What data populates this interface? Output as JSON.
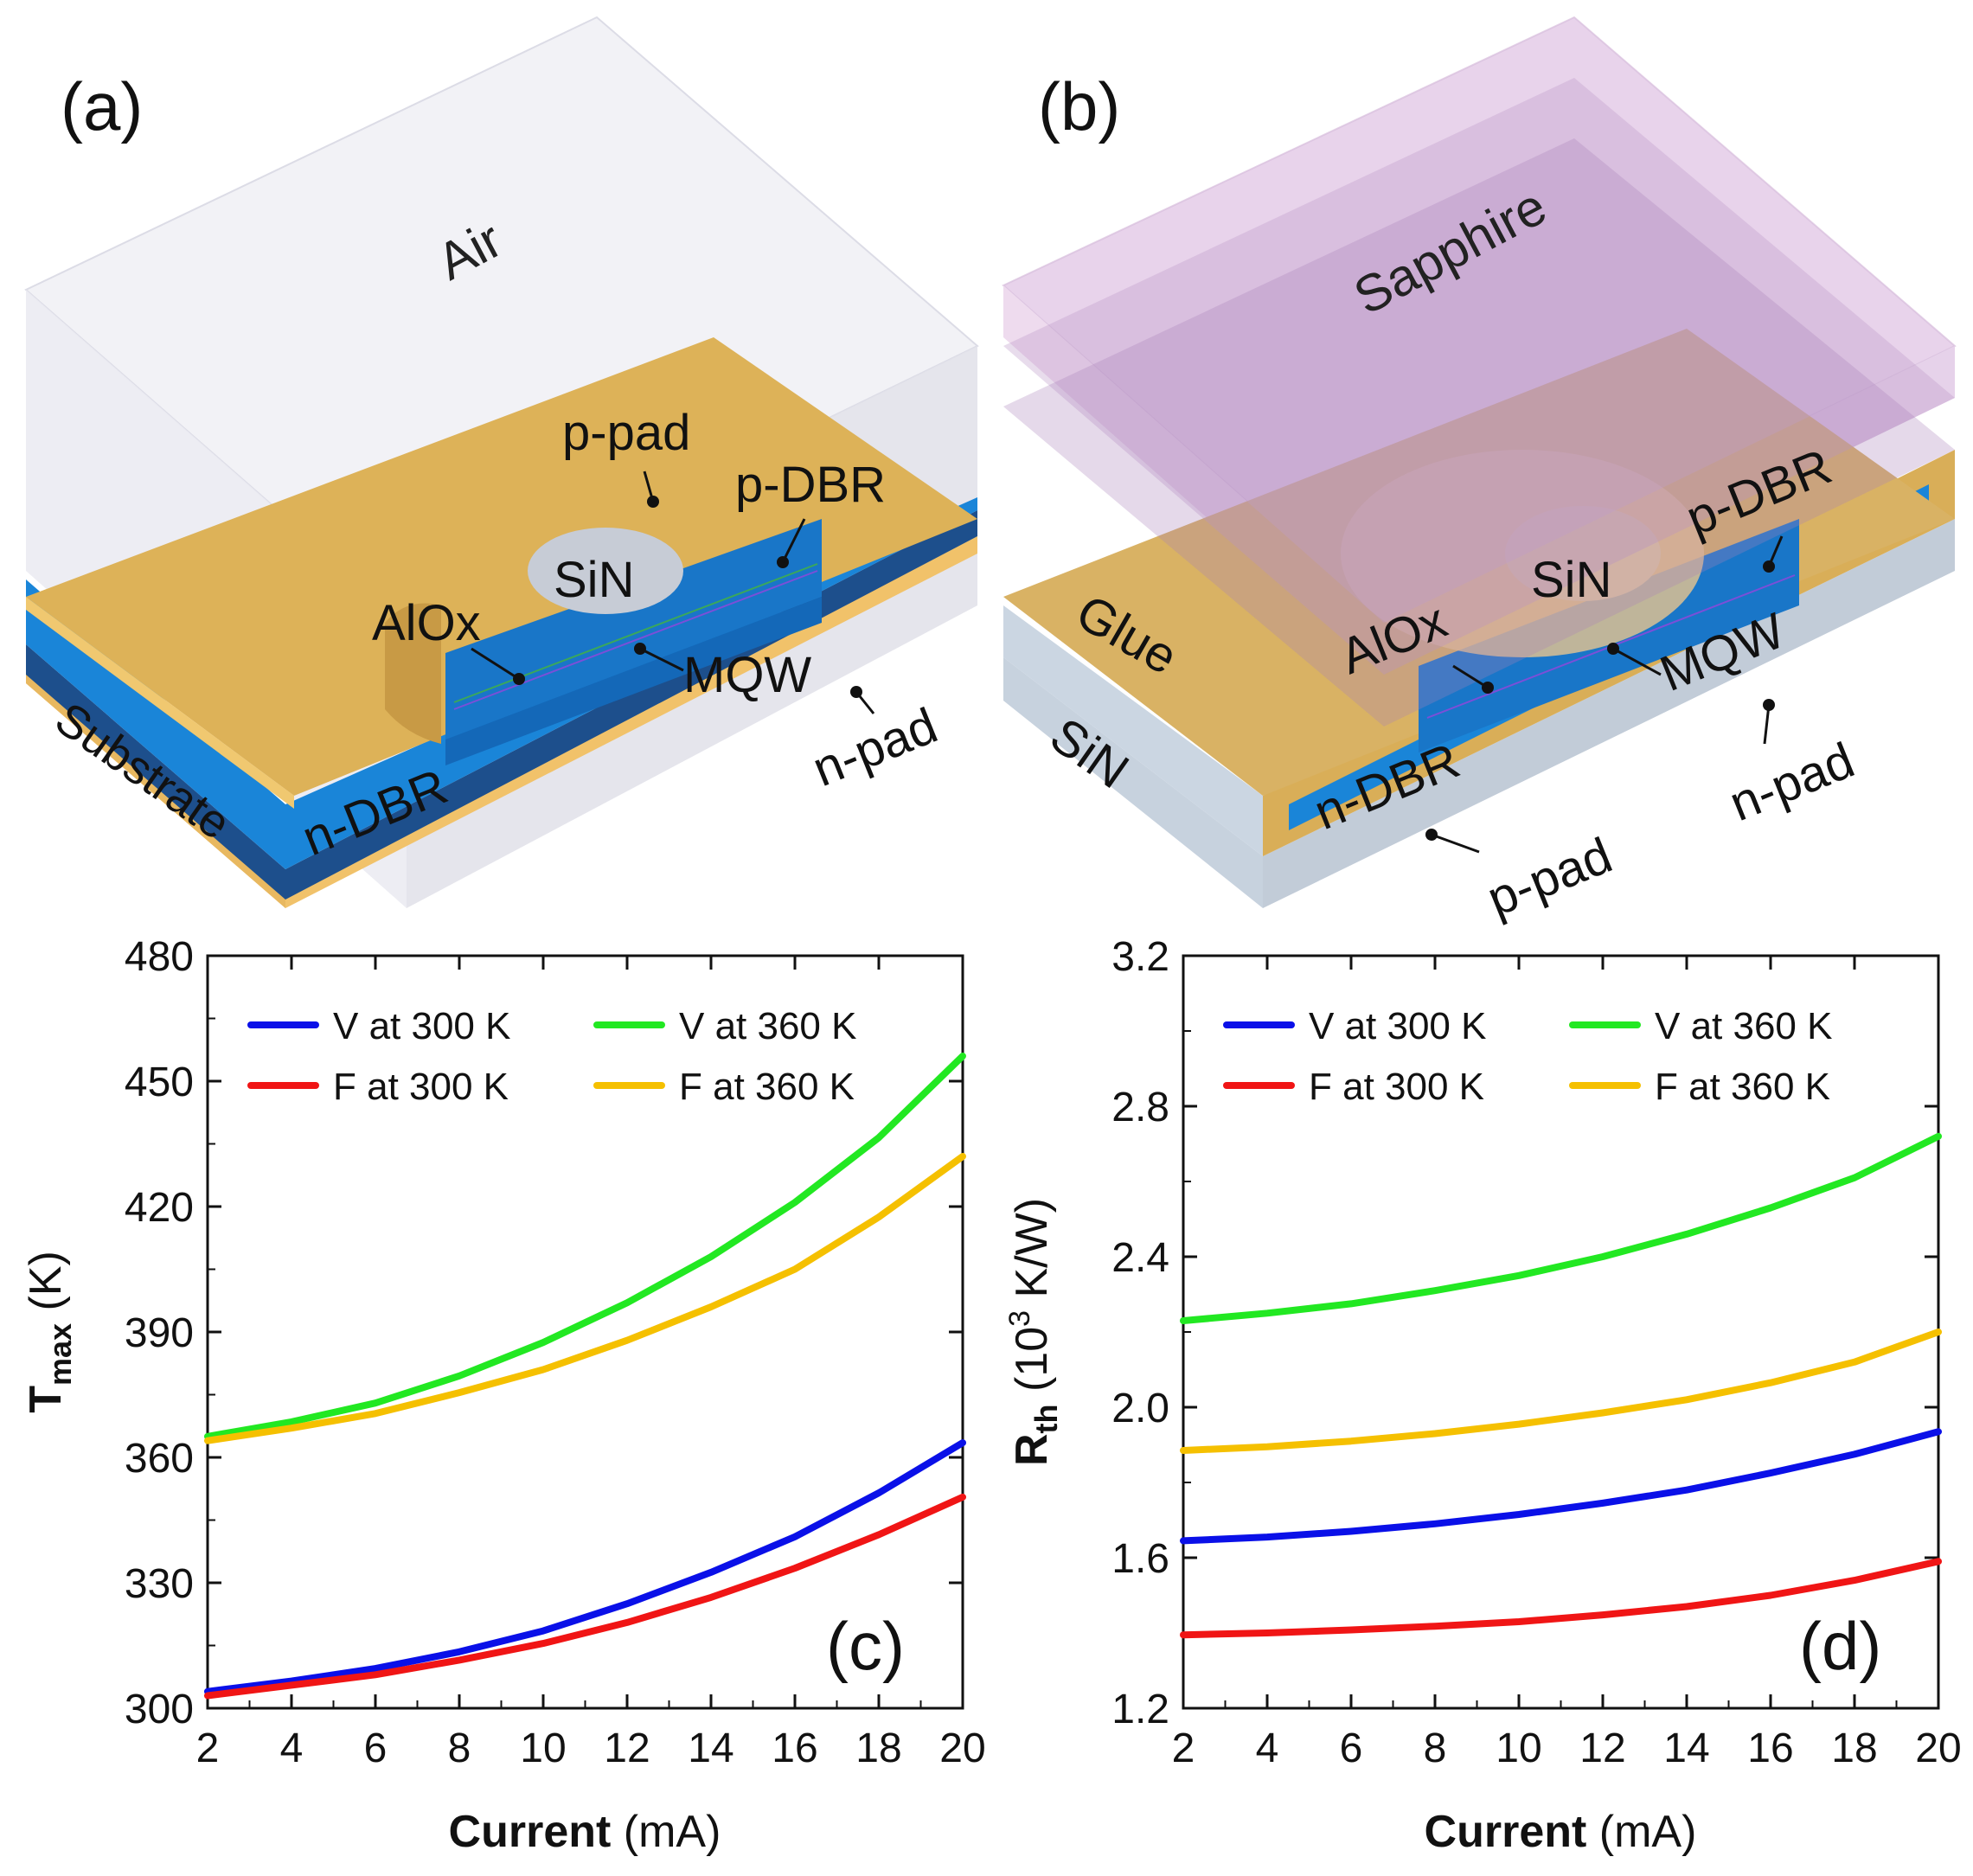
{
  "figure": {
    "panel_a": {
      "label": "(a)",
      "labels": {
        "air": "Air",
        "p_pad": "p-pad",
        "p_dbr": "p-DBR",
        "sin": "SiN",
        "aloX": "AlOx",
        "mqw": "MQW",
        "n_pad": "n-pad",
        "n_dbr": "n-DBR",
        "substrate": "Substrate"
      }
    },
    "panel_b": {
      "label": "(b)",
      "labels": {
        "sapphire": "Sapphire",
        "p_dbr": "p-DBR",
        "sin_top": "SiN",
        "glue": "Glue",
        "aloX": "AlOx",
        "mqw": "MQW",
        "sin_side": "SiN",
        "n_dbr": "n-DBR",
        "n_pad": "n-pad",
        "p_pad": "p-pad"
      }
    }
  },
  "chart_data": [
    {
      "type": "line",
      "panel": "(c)",
      "xlabel_bold": "Current",
      "xlabel_rest": " (mA)",
      "ylabel_main": "T",
      "ylabel_sub": "max",
      "ylabel_rest": " (K)",
      "xlim": [
        2,
        20
      ],
      "ylim": [
        300,
        480
      ],
      "xticks": [
        2,
        4,
        6,
        8,
        10,
        12,
        14,
        16,
        18,
        20
      ],
      "yticks": [
        300,
        330,
        360,
        390,
        420,
        450,
        480
      ],
      "x": [
        2,
        4,
        6,
        8,
        10,
        12,
        14,
        16,
        18,
        20
      ],
      "series": [
        {
          "name": "V at 300 K",
          "color": "#0a10e8",
          "values": [
            304,
            306.5,
            309.5,
            313.5,
            318.5,
            325,
            332.5,
            341,
            351.5,
            363.5
          ]
        },
        {
          "name": "V at 360 K",
          "color": "#22e822",
          "values": [
            365,
            368.5,
            373,
            379.5,
            387.5,
            397,
            408,
            421,
            436.5,
            456
          ]
        },
        {
          "name": "F at 300 K",
          "color": "#f01515",
          "values": [
            303,
            305.5,
            308,
            311.5,
            315.5,
            320.5,
            326.5,
            333.5,
            341.5,
            350.5
          ]
        },
        {
          "name": "F at 360 K",
          "color": "#f5c000",
          "values": [
            364,
            367,
            370.5,
            375.5,
            381,
            388,
            396,
            405,
            417.5,
            432
          ]
        }
      ]
    },
    {
      "type": "line",
      "panel": "(d)",
      "xlabel_bold": "Current",
      "xlabel_rest": " (mA)",
      "ylabel_main": "R",
      "ylabel_sub": "th",
      "ylabel_rest_pre": " (10",
      "ylabel_sup": "3",
      "ylabel_rest_post": " K/W)",
      "xlim": [
        2,
        20
      ],
      "ylim": [
        1.2,
        3.2
      ],
      "xticks": [
        2,
        4,
        6,
        8,
        10,
        12,
        14,
        16,
        18,
        20
      ],
      "yticks": [
        "1.2",
        "1.6",
        "2.0",
        "2.4",
        "2.8",
        "3.2"
      ],
      "x": [
        2,
        4,
        6,
        8,
        10,
        12,
        14,
        16,
        18,
        20
      ],
      "series": [
        {
          "name": "V at 300 K",
          "color": "#0a10e8",
          "values": [
            1.645,
            1.655,
            1.67,
            1.69,
            1.715,
            1.745,
            1.78,
            1.825,
            1.875,
            1.935
          ]
        },
        {
          "name": "V at 360 K",
          "color": "#22e822",
          "values": [
            2.23,
            2.25,
            2.275,
            2.31,
            2.35,
            2.4,
            2.46,
            2.53,
            2.61,
            2.72
          ]
        },
        {
          "name": "F at 300 K",
          "color": "#f01515",
          "values": [
            1.395,
            1.4,
            1.408,
            1.418,
            1.43,
            1.448,
            1.47,
            1.5,
            1.54,
            1.59
          ]
        },
        {
          "name": "F at 360 K",
          "color": "#f5c000",
          "values": [
            1.885,
            1.895,
            1.91,
            1.93,
            1.955,
            1.985,
            2.02,
            2.065,
            2.12,
            2.2
          ]
        }
      ]
    }
  ]
}
